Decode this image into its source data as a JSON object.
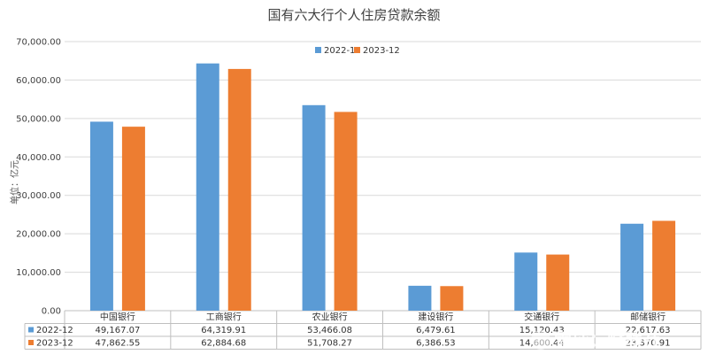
{
  "chart_data": {
    "type": "bar",
    "title": "国有六大行个人住房贷款余额",
    "ylabel": "单位：亿元",
    "ylim": [
      0,
      70000
    ],
    "yticks": [
      "0.00",
      "10,000.00",
      "20,000.00",
      "30,000.00",
      "40,000.00",
      "50,000.00",
      "60,000.00",
      "70,000.00"
    ],
    "grid": true,
    "legend_position": "top-center",
    "categories": [
      "中国银行",
      "工商银行",
      "农业银行",
      "建设银行",
      "交通银行",
      "邮储银行"
    ],
    "series": [
      {
        "name": "2022-12",
        "color": "#5B9BD5",
        "values": [
          49167.07,
          64319.91,
          53466.08,
          6479.61,
          15120.43,
          22617.63
        ],
        "labels": [
          "49,167.07",
          "64,319.91",
          "53,466.08",
          "6,479.61",
          "15,120.43",
          "22,617.63"
        ]
      },
      {
        "name": "2023-12",
        "color": "#ED7D31",
        "values": [
          47862.55,
          62884.68,
          51708.27,
          6386.53,
          14600.44,
          23370.91
        ],
        "labels": [
          "47,862.55",
          "62,884.68",
          "51,708.27",
          "6,386.53",
          "14,600.44",
          "23,370.91"
        ]
      }
    ]
  },
  "watermark": "雪球：财联社"
}
